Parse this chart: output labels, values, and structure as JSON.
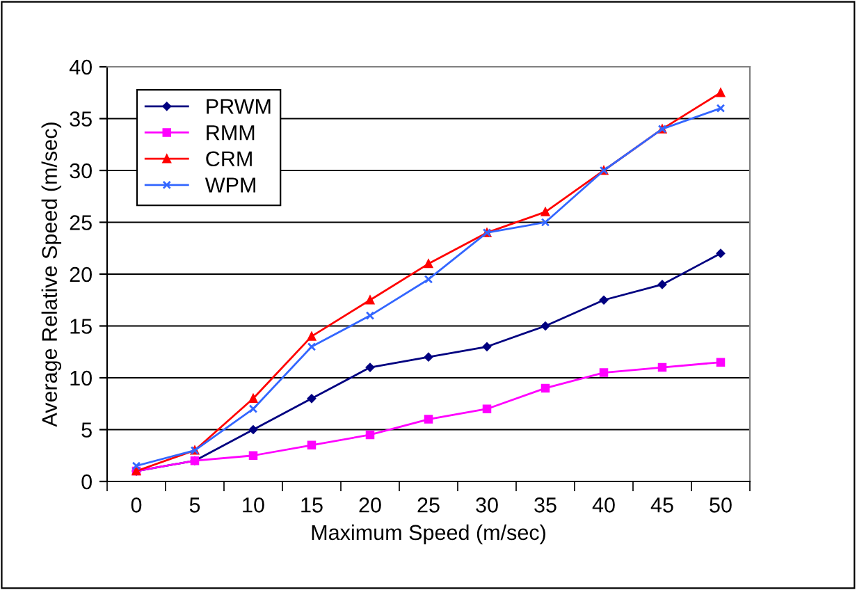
{
  "chart_data": {
    "type": "line",
    "xlabel": "Maximum Speed (m/sec)",
    "ylabel": "Average Relative Speed (m/sec)",
    "categories": [
      "0",
      "5",
      "10",
      "15",
      "20",
      "25",
      "30",
      "35",
      "40",
      "45",
      "50"
    ],
    "series": [
      {
        "name": "PRWM",
        "color": "#000080",
        "marker": "diamond",
        "values": [
          1,
          2,
          5,
          8,
          11,
          12,
          13,
          15,
          17.5,
          19,
          22
        ]
      },
      {
        "name": "RMM",
        "color": "#ff00ff",
        "marker": "square",
        "values": [
          1,
          2,
          2.5,
          3.5,
          4.5,
          6,
          7,
          9,
          10.5,
          11,
          11.5
        ]
      },
      {
        "name": "CRM",
        "color": "#ff0000",
        "marker": "triangle",
        "values": [
          1,
          3,
          8,
          14,
          17.5,
          21,
          24,
          26,
          30,
          34,
          37.5
        ]
      },
      {
        "name": "WPM",
        "color": "#3366ff",
        "marker": "cross",
        "values": [
          1.5,
          3,
          7,
          13,
          16,
          19.5,
          24,
          25,
          30,
          34,
          36
        ]
      }
    ],
    "ylim": [
      0,
      40
    ],
    "yticks": [
      0,
      5,
      10,
      15,
      20,
      25,
      30,
      35,
      40
    ],
    "grid": "y",
    "legend": "top left",
    "line_style": "solid"
  }
}
